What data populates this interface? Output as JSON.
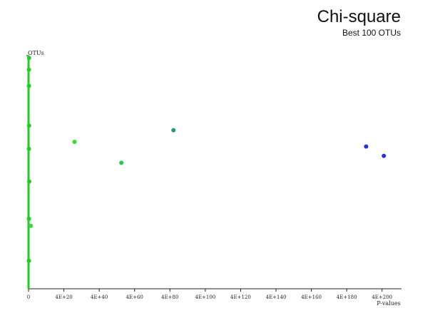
{
  "chart_data": {
    "type": "scatter",
    "title": "Chi-square",
    "subtitle": "Best 100 OTUs",
    "xlabel": "P-values",
    "ylabel": "OTUs",
    "x_exponent_base": 4,
    "x_tick_exponents": [
      0,
      20,
      40,
      60,
      80,
      100,
      120,
      140,
      160,
      180,
      200
    ],
    "x_tick_labels": [
      "0",
      "4E+20",
      "4E+40",
      "4E+60",
      "4E+80",
      "4E+100",
      "4E+120",
      "4E+140",
      "4E+160",
      "4E+180",
      "4E+200"
    ],
    "x_range_exponents": [
      0,
      211
    ],
    "ylim": [
      0,
      100
    ],
    "grid": false,
    "points": [
      {
        "x_exponent": 0.3,
        "y": 99,
        "color": "#22cc22"
      },
      {
        "x_exponent": 0.2,
        "y": 94,
        "color": "#22cc22"
      },
      {
        "x_exponent": 0.2,
        "y": 87,
        "color": "#22cc22"
      },
      {
        "x_exponent": 0.3,
        "y": 70,
        "color": "#22cc22"
      },
      {
        "x_exponent": 0.2,
        "y": 60,
        "color": "#22cc22"
      },
      {
        "x_exponent": 0.4,
        "y": 46,
        "color": "#22cc22"
      },
      {
        "x_exponent": 0.2,
        "y": 30,
        "color": "#22cc22"
      },
      {
        "x_exponent": 0.2,
        "y": 12,
        "color": "#22cc22"
      },
      {
        "x_exponent": 1.3,
        "y": 27,
        "color": "#33dd33"
      },
      {
        "x_exponent": 26,
        "y": 63,
        "color": "#33dd33"
      },
      {
        "x_exponent": 52.5,
        "y": 54,
        "color": "#22cc55"
      },
      {
        "x_exponent": 82,
        "y": 68,
        "color": "#229977"
      },
      {
        "x_exponent": 191,
        "y": 61,
        "color": "#2233dd"
      },
      {
        "x_exponent": 201,
        "y": 57,
        "color": "#2233dd"
      }
    ]
  }
}
